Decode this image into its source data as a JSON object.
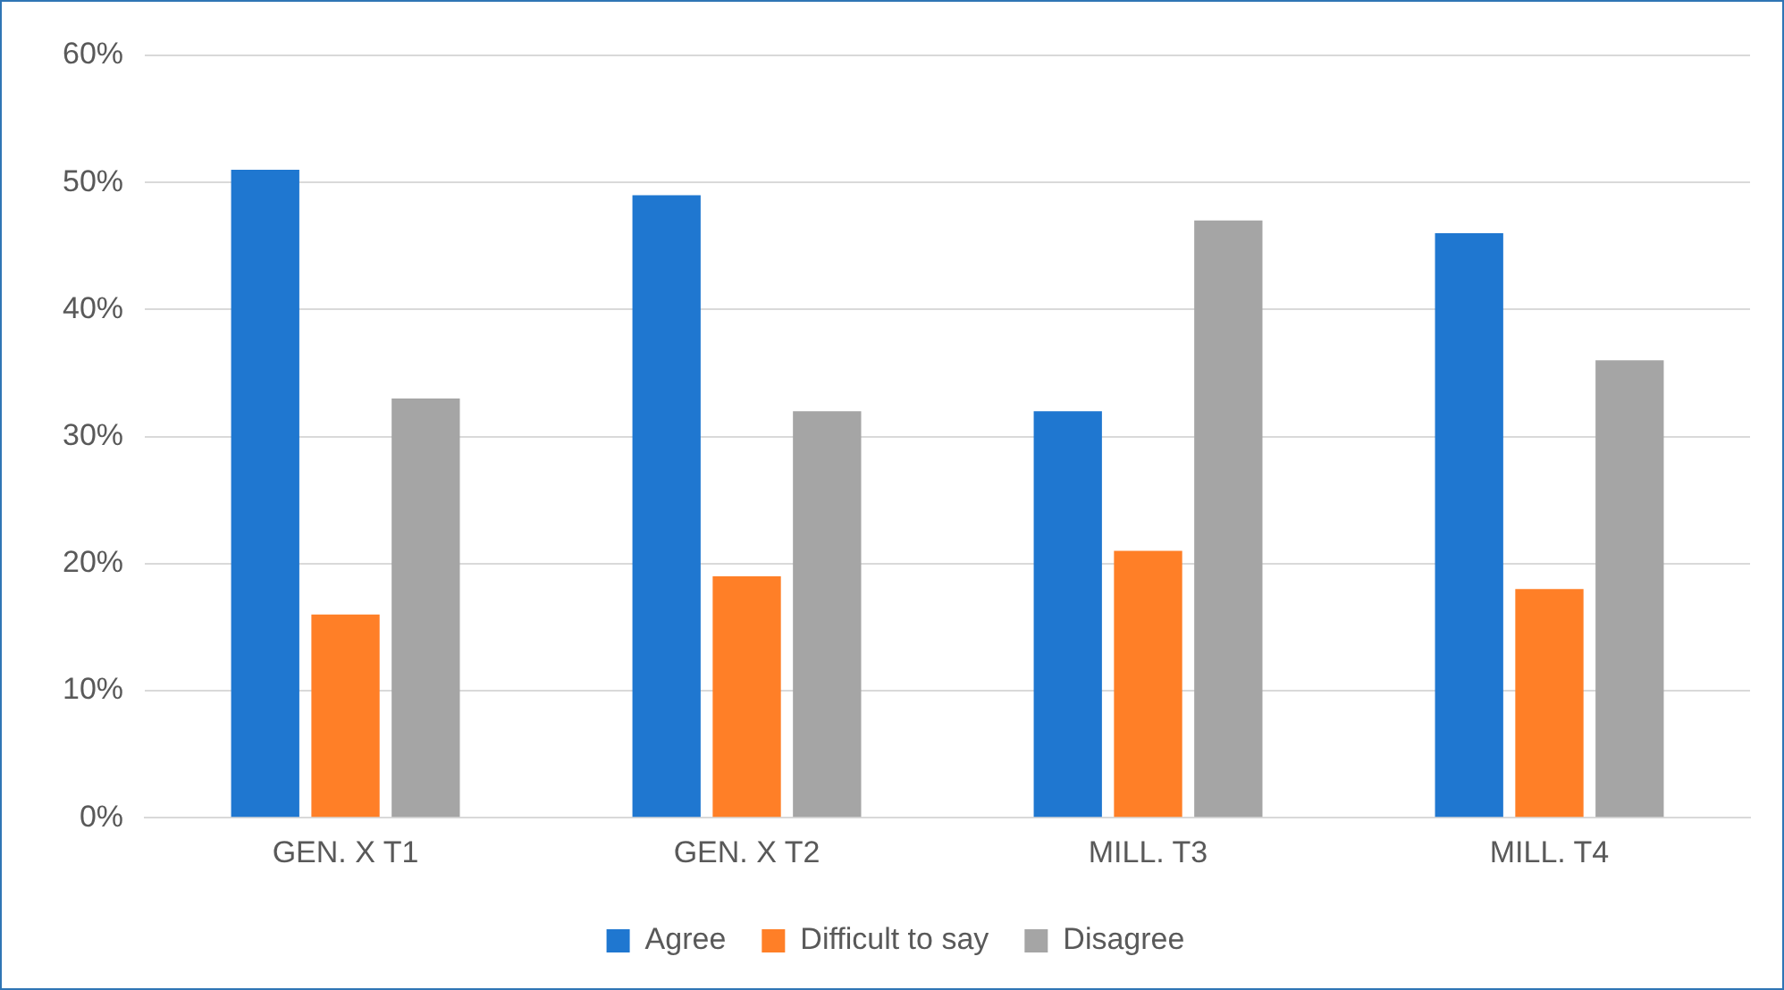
{
  "chart_data": {
    "type": "bar",
    "categories": [
      "GEN. X T1",
      "GEN. X T2",
      "MILL. T3",
      "MILL. T4"
    ],
    "series": [
      {
        "name": "Agree",
        "color": "#1f77d0",
        "values": [
          51,
          49,
          32,
          46
        ]
      },
      {
        "name": "Difficult to say",
        "color": "#ff7f27",
        "values": [
          16,
          19,
          21,
          18
        ]
      },
      {
        "name": "Disagree",
        "color": "#a5a5a5",
        "values": [
          33,
          32,
          47,
          36
        ]
      }
    ],
    "ylim": [
      0,
      60
    ],
    "yticks": [
      {
        "value": 0,
        "label": "0%"
      },
      {
        "value": 10,
        "label": "10%"
      },
      {
        "value": 20,
        "label": "20%"
      },
      {
        "value": 30,
        "label": "30%"
      },
      {
        "value": 40,
        "label": "40%"
      },
      {
        "value": 50,
        "label": "50%"
      },
      {
        "value": 60,
        "label": "60%"
      }
    ],
    "grid": "y",
    "legend": "bottom"
  }
}
